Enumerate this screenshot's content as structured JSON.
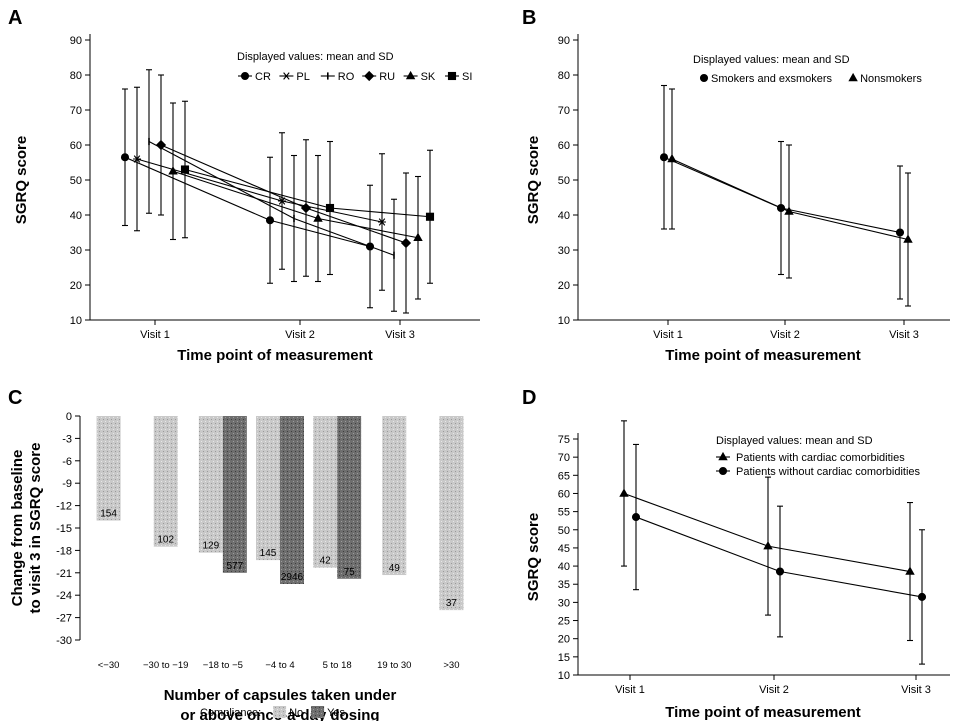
{
  "chart_data": [
    {
      "panel": "A",
      "type": "line",
      "ylabel": "SGRQ score",
      "xlabel": "Time point of measurement",
      "categories": [
        "Visit 1",
        "Visit 2",
        "Visit 3"
      ],
      "ylim": [
        10,
        90
      ],
      "yticks": [
        10,
        20,
        30,
        40,
        50,
        60,
        70,
        80,
        90
      ],
      "note": "Displayed values: mean and SD",
      "legend_position": "top-right",
      "series": [
        {
          "name": "CR",
          "marker": "circle",
          "values": [
            56.5,
            38.5,
            31.0
          ],
          "sd": [
            19.5,
            18.0,
            17.5
          ]
        },
        {
          "name": "PL",
          "marker": "asterisk",
          "values": [
            56.0,
            44.0,
            38.0
          ],
          "sd": [
            20.5,
            19.5,
            19.5
          ]
        },
        {
          "name": "RO",
          "marker": "tick",
          "values": [
            61.0,
            39.0,
            28.5
          ],
          "sd": [
            20.5,
            18.0,
            16.0
          ]
        },
        {
          "name": "RU",
          "marker": "diamond",
          "values": [
            60.0,
            42.0,
            32.0
          ],
          "sd": [
            20.0,
            19.5,
            20.0
          ]
        },
        {
          "name": "SK",
          "marker": "triangle",
          "values": [
            52.5,
            39.0,
            33.5
          ],
          "sd": [
            19.5,
            18.0,
            17.5
          ]
        },
        {
          "name": "SI",
          "marker": "square",
          "values": [
            53.0,
            42.0,
            39.5
          ],
          "sd": [
            19.5,
            19.0,
            19.0
          ]
        }
      ]
    },
    {
      "panel": "B",
      "type": "line",
      "ylabel": "SGRQ score",
      "xlabel": "Time point of measurement",
      "categories": [
        "Visit 1",
        "Visit 2",
        "Visit 3"
      ],
      "ylim": [
        10,
        90
      ],
      "yticks": [
        10,
        20,
        30,
        40,
        50,
        60,
        70,
        80,
        90
      ],
      "note": "Displayed values: mean and SD",
      "legend_position": "top-right",
      "series": [
        {
          "name": "Smokers and exsmokers",
          "marker": "circle",
          "values": [
            56.5,
            42.0,
            35.0
          ],
          "sd": [
            20.5,
            19.0,
            19.0
          ]
        },
        {
          "name": "Nonsmokers",
          "marker": "triangle",
          "values": [
            56.0,
            41.0,
            33.0
          ],
          "sd": [
            20.0,
            19.0,
            19.0
          ]
        }
      ]
    },
    {
      "panel": "C",
      "type": "bar",
      "ylabel_lines": [
        "Change from baseline",
        "to visit 3 in SGRQ score"
      ],
      "xlabel_lines": [
        "Number of capsules taken under",
        "or above once-a-day dosing"
      ],
      "categories": [
        "<−30",
        "−30 to −19",
        "−18 to −5",
        "−4 to 4",
        "5 to 18",
        "19 to 30",
        ">30"
      ],
      "ylim": [
        -30,
        0
      ],
      "yticks": [
        "0",
        "-3",
        "-6",
        "-9",
        "-12",
        "-15",
        "-18",
        "-21",
        "-24",
        "-27",
        "-30"
      ],
      "legend_title": "Compliance:",
      "legend_position": "bottom-center",
      "series": [
        {
          "name": "No",
          "color": "#c8c8c8",
          "values": [
            -14.0,
            -17.5,
            -18.3,
            -19.3,
            -20.3,
            -21.3,
            -26.0
          ],
          "counts": [
            "154",
            "102",
            "129",
            "145",
            "42",
            "49",
            "37"
          ]
        },
        {
          "name": "Yes",
          "color": "#707070",
          "values": [
            null,
            null,
            -21.0,
            -22.5,
            -21.8,
            null,
            null
          ],
          "counts": [
            "",
            "",
            "577",
            "2946",
            "75",
            "",
            ""
          ]
        }
      ]
    },
    {
      "panel": "D",
      "type": "line",
      "ylabel": "SGRQ score",
      "xlabel": "Time point of measurement",
      "categories": [
        "Visit 1",
        "Visit 2",
        "Visit 3"
      ],
      "ylim": [
        10,
        75
      ],
      "yticks": [
        10,
        15,
        20,
        25,
        30,
        35,
        40,
        45,
        50,
        55,
        60,
        65,
        70,
        75
      ],
      "note": "Displayed values: mean and SD",
      "legend_position": "top-right",
      "series": [
        {
          "name": "Patients with cardiac comorbidities",
          "marker": "triangle",
          "values": [
            60.0,
            45.5,
            38.5
          ],
          "sd": [
            20.0,
            19.0,
            19.0
          ]
        },
        {
          "name": "Patients without cardiac comorbidities",
          "marker": "circle",
          "values": [
            53.5,
            38.5,
            31.5
          ],
          "sd": [
            20.0,
            18.0,
            18.5
          ]
        }
      ]
    }
  ]
}
